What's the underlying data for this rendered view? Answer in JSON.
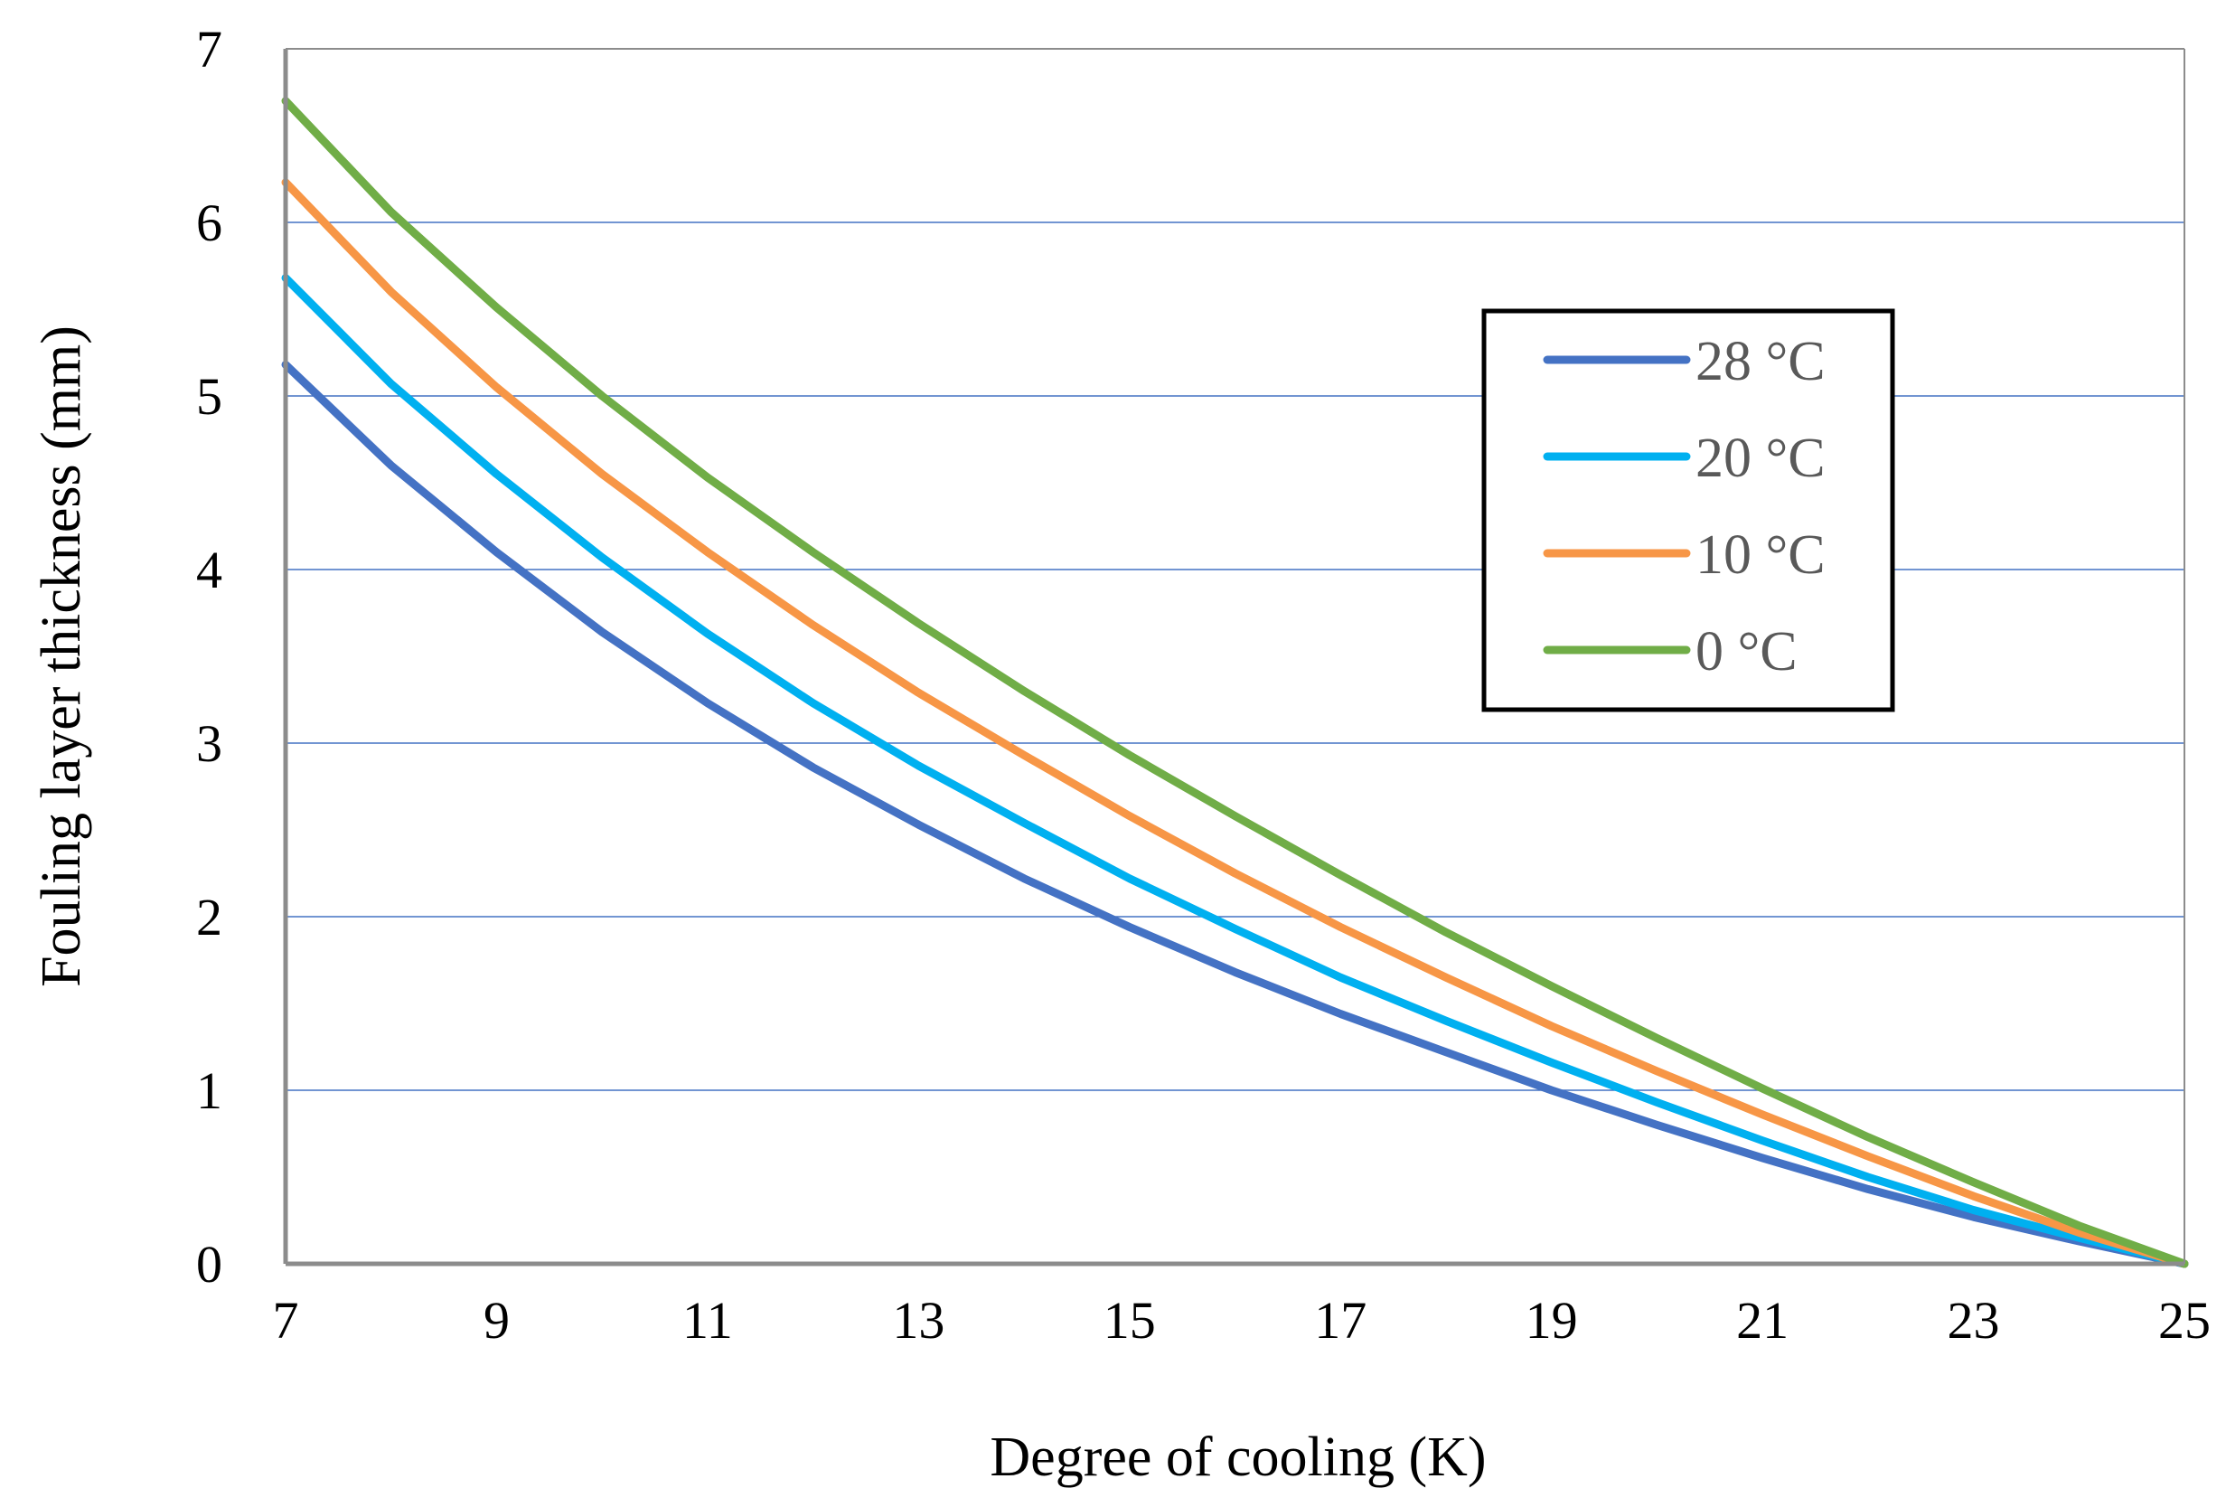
{
  "chart_data": {
    "type": "line",
    "title": "",
    "xlabel": "Degree of cooling  (K)",
    "ylabel": "Fouling layer thickness (mm)",
    "xlim": [
      7,
      25
    ],
    "ylim": [
      0,
      7
    ],
    "xticks": [
      7,
      9,
      11,
      13,
      15,
      17,
      19,
      21,
      23,
      25
    ],
    "yticks": [
      0,
      1,
      2,
      3,
      4,
      5,
      6,
      7
    ],
    "grid": "horizontal",
    "legend_position": "right",
    "x": [
      7,
      8,
      9,
      10,
      11,
      12,
      13,
      14,
      15,
      16,
      17,
      18,
      19,
      20,
      21,
      22,
      23,
      24,
      25
    ],
    "series": [
      {
        "name": "28 °C",
        "color": "#4472C4",
        "values": [
          5.18,
          4.6,
          4.1,
          3.64,
          3.23,
          2.86,
          2.53,
          2.22,
          1.94,
          1.68,
          1.44,
          1.22,
          1.0,
          0.8,
          0.61,
          0.43,
          0.27,
          0.13,
          0.0
        ]
      },
      {
        "name": "20 °C",
        "color": "#00B0F0",
        "values": [
          5.68,
          5.07,
          4.55,
          4.07,
          3.63,
          3.23,
          2.87,
          2.54,
          2.22,
          1.93,
          1.65,
          1.4,
          1.16,
          0.93,
          0.71,
          0.5,
          0.31,
          0.15,
          0.0
        ]
      },
      {
        "name": "10 °C",
        "color": "#F79646",
        "values": [
          6.23,
          5.6,
          5.05,
          4.55,
          4.1,
          3.68,
          3.29,
          2.93,
          2.58,
          2.25,
          1.94,
          1.65,
          1.37,
          1.11,
          0.86,
          0.62,
          0.39,
          0.18,
          0.0
        ]
      },
      {
        "name": "0 °C",
        "color": "#70AD47",
        "values": [
          6.7,
          6.06,
          5.51,
          5.0,
          4.53,
          4.1,
          3.69,
          3.3,
          2.93,
          2.58,
          2.24,
          1.91,
          1.6,
          1.3,
          1.01,
          0.73,
          0.47,
          0.22,
          0.0
        ]
      }
    ]
  }
}
